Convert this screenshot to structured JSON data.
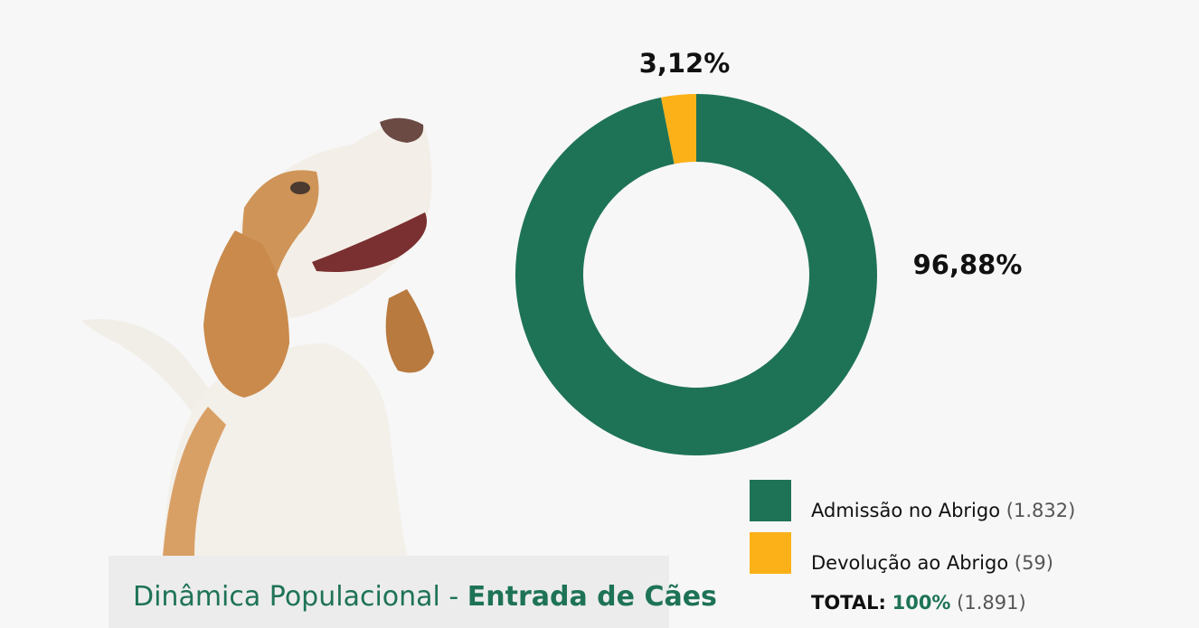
{
  "chart_data": {
    "type": "pie",
    "donut": true,
    "title": [
      "Dinâmica Populacional - ",
      "Entrada de Cães"
    ],
    "categories": [
      "Admissão no Abrigo",
      "Devolução ao Abrigo"
    ],
    "values": [
      96.88,
      3.12
    ],
    "value_labels": [
      "96,88%",
      "3,12%"
    ],
    "colors": [
      "#1e7356",
      "#fbb117"
    ],
    "counts": [
      1832,
      59
    ],
    "count_labels": [
      "(1.832)",
      "(59)"
    ],
    "total": {
      "label": "TOTAL:",
      "value": 100,
      "value_label": "100%",
      "count": 1891,
      "count_label": "(1.891)"
    }
  }
}
